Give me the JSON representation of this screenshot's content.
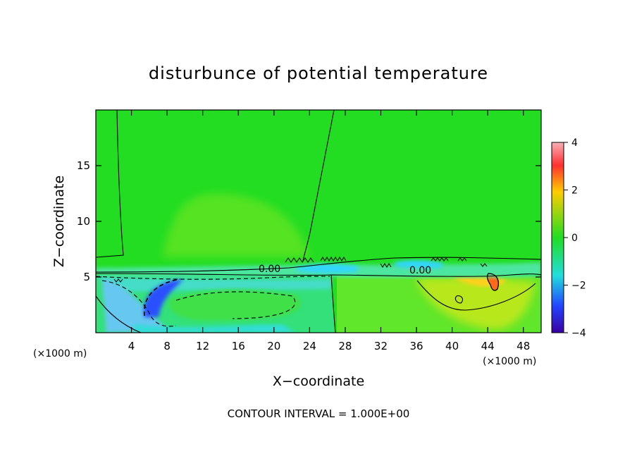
{
  "chart_data": {
    "type": "heatmap",
    "title": "disturbunce of potential temperature",
    "xlabel": "X−coordinate",
    "ylabel": "Z−coordinate",
    "x_unit_left": "(×1000 m)",
    "x_unit_right": "(×1000 m)",
    "xlim": [
      0,
      50
    ],
    "ylim": [
      0,
      20
    ],
    "x_ticks": [
      4,
      8,
      12,
      16,
      20,
      24,
      28,
      32,
      36,
      40,
      44,
      48
    ],
    "y_ticks": [
      5,
      10,
      15
    ],
    "colorbar": {
      "range": [
        -4,
        4
      ],
      "ticks": [
        4,
        2,
        0,
        -2,
        -4
      ],
      "colors": [
        "#f8b0b8",
        "#ff3030",
        "#ffcc00",
        "#22dd22",
        "#22dddd",
        "#2244ff",
        "#3a00a0"
      ]
    },
    "contour_labels": [
      "0.00",
      "0.00"
    ],
    "contour_interval_text": "CONTOUR INTERVAL = 1.000E+00",
    "regions": [
      {
        "name": "upper-layer",
        "x": [
          0,
          50
        ],
        "z": [
          6.5,
          20
        ],
        "value": 0.0
      },
      {
        "name": "lee-plume",
        "x": [
          7,
          24
        ],
        "z": [
          7,
          12.5
        ],
        "value": 0.2
      },
      {
        "name": "cold-pool-core",
        "x": [
          4,
          9
        ],
        "z": [
          1.2,
          4.7
        ],
        "value": -3.0
      },
      {
        "name": "cold-layer-west",
        "x": [
          0,
          24
        ],
        "z": [
          0,
          5.3
        ],
        "value": -0.8
      },
      {
        "name": "inner-zone-west",
        "x": [
          8,
          22
        ],
        "z": [
          1,
          3.5
        ],
        "value": 0.2
      },
      {
        "name": "warm-anomaly",
        "x": [
          43.3,
          45
        ],
        "z": [
          3.8,
          5
        ],
        "value": 2.5
      },
      {
        "name": "warm-zone-east",
        "x": [
          38,
          50
        ],
        "z": [
          1,
          5
        ],
        "value": 1.0
      }
    ]
  }
}
